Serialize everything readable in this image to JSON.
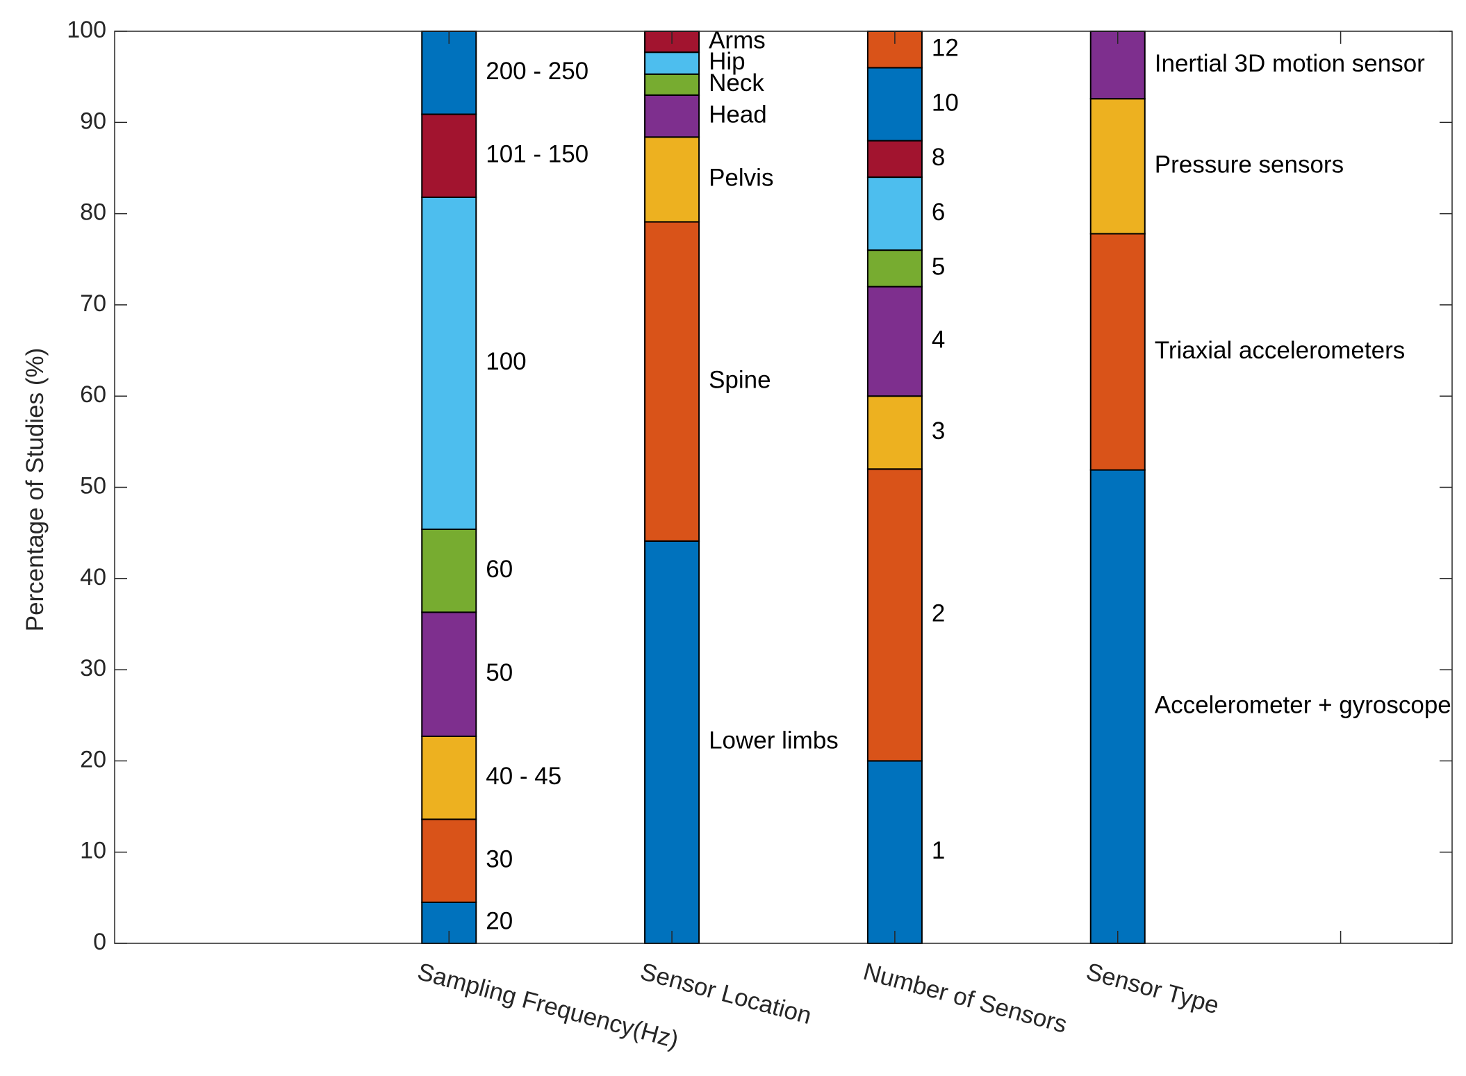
{
  "chart_data": {
    "type": "stacked-bar",
    "title": "",
    "xlabel": "",
    "ylabel": "Percentage of Studies (%)",
    "ylim": [
      0,
      100
    ],
    "yticks": [
      "0",
      "10",
      "20",
      "30",
      "40",
      "50",
      "60",
      "70",
      "80",
      "90",
      "100"
    ],
    "grid": false,
    "categories": [
      "Sampling Frequency(Hz)",
      "Sensor Location",
      "Number of Sensors",
      "Sensor Type"
    ],
    "bars": [
      {
        "category": "Sampling Frequency(Hz)",
        "segments": [
          {
            "label": "20",
            "value": 4.5,
            "color": "#0072BD"
          },
          {
            "label": "30",
            "value": 9.1,
            "color": "#D95319"
          },
          {
            "label": "40 - 45",
            "value": 9.1,
            "color": "#EDB120"
          },
          {
            "label": "50",
            "value": 13.6,
            "color": "#7E2F8E"
          },
          {
            "label": "60",
            "value": 9.1,
            "color": "#77AC30"
          },
          {
            "label": "100",
            "value": 36.4,
            "color": "#4DBEEE"
          },
          {
            "label": "101 - 150",
            "value": 9.1,
            "color": "#A2142F"
          },
          {
            "label": "200 - 250",
            "value": 9.1,
            "color": "#0072BD"
          }
        ]
      },
      {
        "category": "Sensor Location",
        "segments": [
          {
            "label": "Lower limbs",
            "value": 44.1,
            "color": "#0072BD"
          },
          {
            "label": "Spine",
            "value": 35.0,
            "color": "#D95319"
          },
          {
            "label": "Pelvis",
            "value": 9.3,
            "color": "#EDB120"
          },
          {
            "label": "Head",
            "value": 4.6,
            "color": "#7E2F8E"
          },
          {
            "label": "Neck",
            "value": 2.3,
            "color": "#77AC30"
          },
          {
            "label": "Hip",
            "value": 2.4,
            "color": "#4DBEEE"
          },
          {
            "label": "Arms",
            "value": 2.3,
            "color": "#A2142F"
          }
        ]
      },
      {
        "category": "Number of Sensors",
        "segments": [
          {
            "label": "1",
            "value": 20.0,
            "color": "#0072BD"
          },
          {
            "label": "2",
            "value": 32.0,
            "color": "#D95319"
          },
          {
            "label": "3",
            "value": 8.0,
            "color": "#EDB120"
          },
          {
            "label": "4",
            "value": 12.0,
            "color": "#7E2F8E"
          },
          {
            "label": "5",
            "value": 4.0,
            "color": "#77AC30"
          },
          {
            "label": "6",
            "value": 8.0,
            "color": "#4DBEEE"
          },
          {
            "label": "8",
            "value": 4.0,
            "color": "#A2142F"
          },
          {
            "label": "10",
            "value": 8.0,
            "color": "#0072BD"
          },
          {
            "label": "12",
            "value": 4.0,
            "color": "#D95319"
          }
        ]
      },
      {
        "category": "Sensor Type",
        "segments": [
          {
            "label": "Accelerometer + gyroscope",
            "value": 51.9,
            "color": "#0072BD"
          },
          {
            "label": "Triaxial accelerometers",
            "value": 25.9,
            "color": "#D95319"
          },
          {
            "label": "Pressure sensors",
            "value": 14.8,
            "color": "#EDB120"
          },
          {
            "label": "Inertial 3D motion sensor",
            "value": 7.4,
            "color": "#7E2F8E"
          }
        ]
      }
    ]
  }
}
